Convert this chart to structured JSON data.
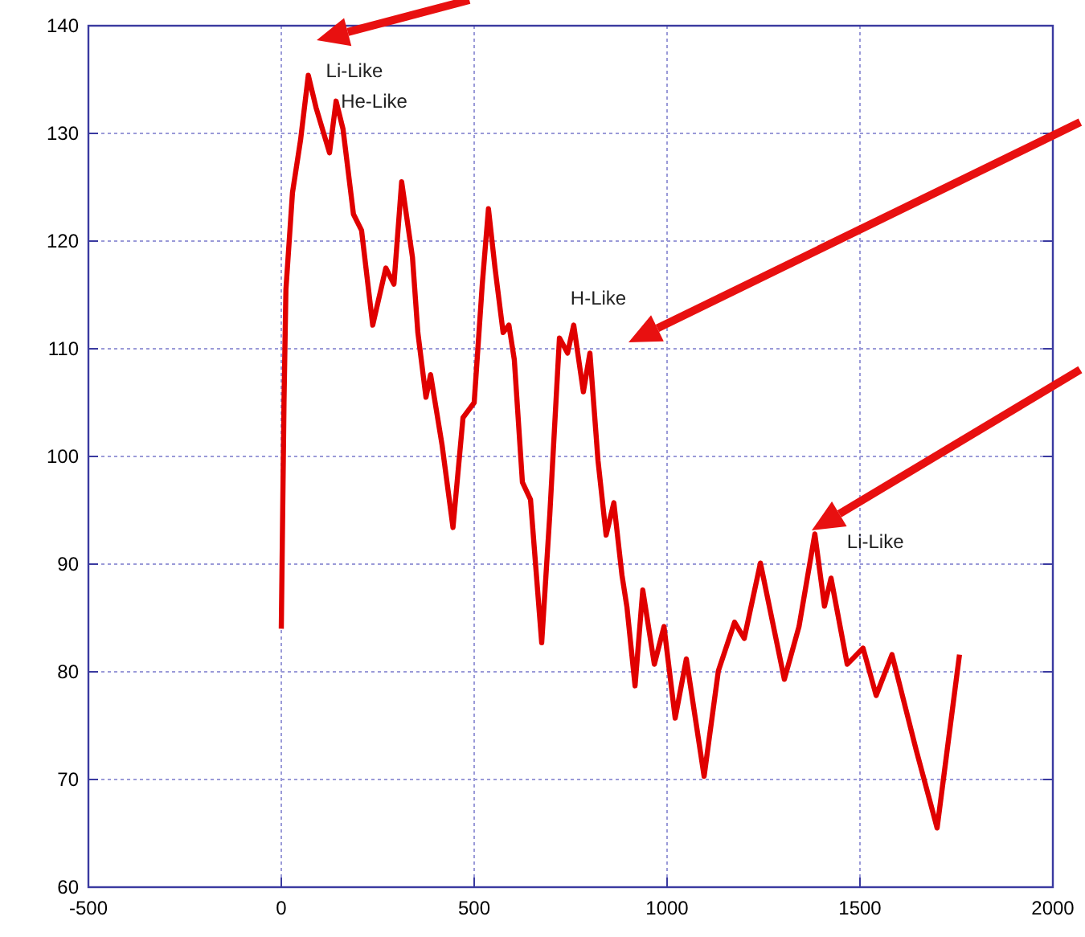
{
  "chart_data": {
    "type": "line",
    "xlim": [
      -500,
      2000
    ],
    "xticks": [
      -500,
      0,
      500,
      1000,
      1500,
      2000
    ],
    "ylim": [
      60,
      140
    ],
    "yticks": [
      60,
      70,
      80,
      90,
      100,
      110,
      120,
      130,
      140
    ],
    "grid": true,
    "marker": "none",
    "line_style": "solid",
    "annotations": [
      {
        "text": "Li-Like",
        "x": 70,
        "y": 135.4
      },
      {
        "text": "He-Like",
        "x": 142,
        "y": 133
      },
      {
        "text": "H-Like",
        "x": 758,
        "y": 112.2
      },
      {
        "text": "Li-Like",
        "x": 1383,
        "y": 92.8
      }
    ],
    "series": [
      {
        "color": "#e00000",
        "x": [
          0,
          7,
          12,
          29,
          50,
          70,
          90,
          125,
          142,
          160,
          187,
          208,
          237,
          271,
          292,
          312,
          340,
          354,
          375,
          387,
          417,
          445,
          471,
          500,
          521,
          537,
          554,
          575,
          590,
          604,
          625,
          646,
          675,
          696,
          721,
          742,
          758,
          783,
          800,
          821,
          842,
          862,
          883,
          896,
          917,
          937,
          967,
          992,
          1021,
          1050,
          1096,
          1133,
          1175,
          1200,
          1242,
          1304,
          1342,
          1383,
          1408,
          1425,
          1467,
          1508,
          1542,
          1583,
          1646,
          1700,
          1758
        ],
        "values": [
          84,
          105,
          115.5,
          124.5,
          129.4,
          135.4,
          132.4,
          128.2,
          133,
          130.4,
          122.5,
          121,
          112.2,
          117.5,
          116,
          125.5,
          118.5,
          111.5,
          105.5,
          107.6,
          101,
          93.4,
          103.6,
          105,
          116,
          123,
          117.5,
          111.5,
          112.2,
          109,
          97.6,
          96,
          82.7,
          94.6,
          111,
          109.6,
          112.2,
          106,
          109.6,
          99.6,
          92.7,
          95.7,
          89,
          86,
          78.7,
          87.6,
          80.7,
          84.2,
          75.7,
          81.2,
          70.3,
          80.1,
          84.6,
          83.1,
          90.1,
          79.3,
          84.2,
          92.8,
          86.1,
          88.7,
          80.7,
          82.2,
          77.8,
          81.6,
          72.7,
          65.5,
          81.6
        ]
      }
    ]
  }
}
